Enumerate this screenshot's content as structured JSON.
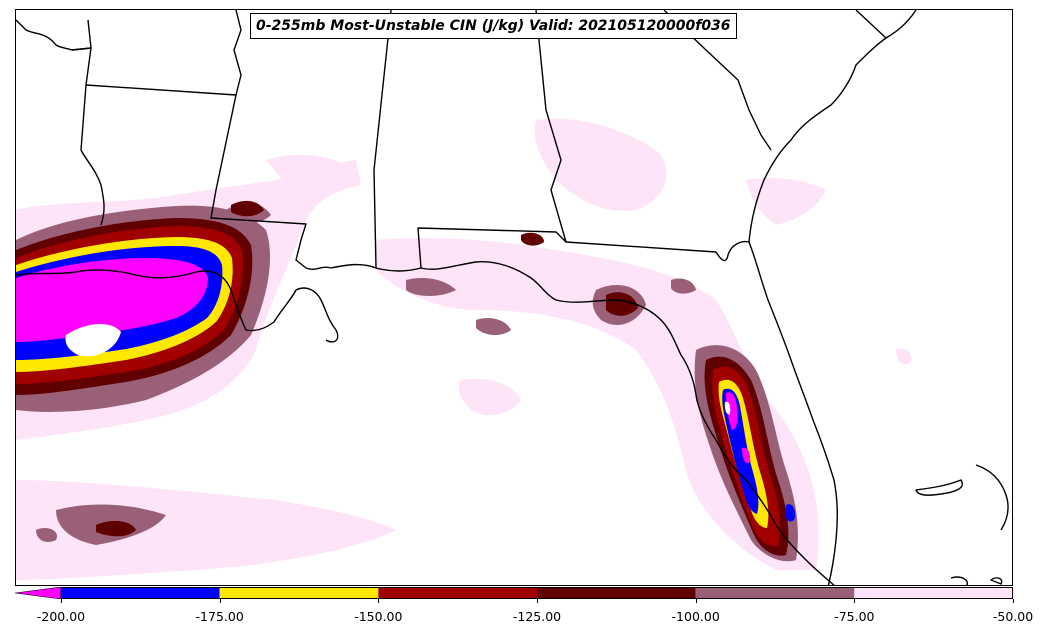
{
  "map": {
    "title": "0-255mb Most-Unstable CIN (J/kg) Valid: 202105120000f036",
    "colors": {
      "lt_-200": "#ff00ff",
      "-200_-175": "#0000ff",
      "-175_-150": "#ffe800",
      "-150_-125": "#a00000",
      "-125_-100": "#600000",
      "-100_-75": "#9a6078",
      "-75_-50": "#fde4f8"
    }
  },
  "colorbar": {
    "ticks": [
      "-200.00",
      "-175.00",
      "-150.00",
      "-125.00",
      "-100.00",
      "-75.00",
      "-50.00"
    ],
    "segments": [
      {
        "range": "-200 to -175",
        "color": "#0000ff"
      },
      {
        "range": "-175 to -150",
        "color": "#ffe800"
      },
      {
        "range": "-150 to -125",
        "color": "#a00000"
      },
      {
        "range": "-125 to -100",
        "color": "#600000"
      },
      {
        "range": "-100 to -75",
        "color": "#9a6078"
      },
      {
        "range": "-75 to -50",
        "color": "#fde4f8"
      }
    ],
    "extend_color": "#ff00ff"
  }
}
